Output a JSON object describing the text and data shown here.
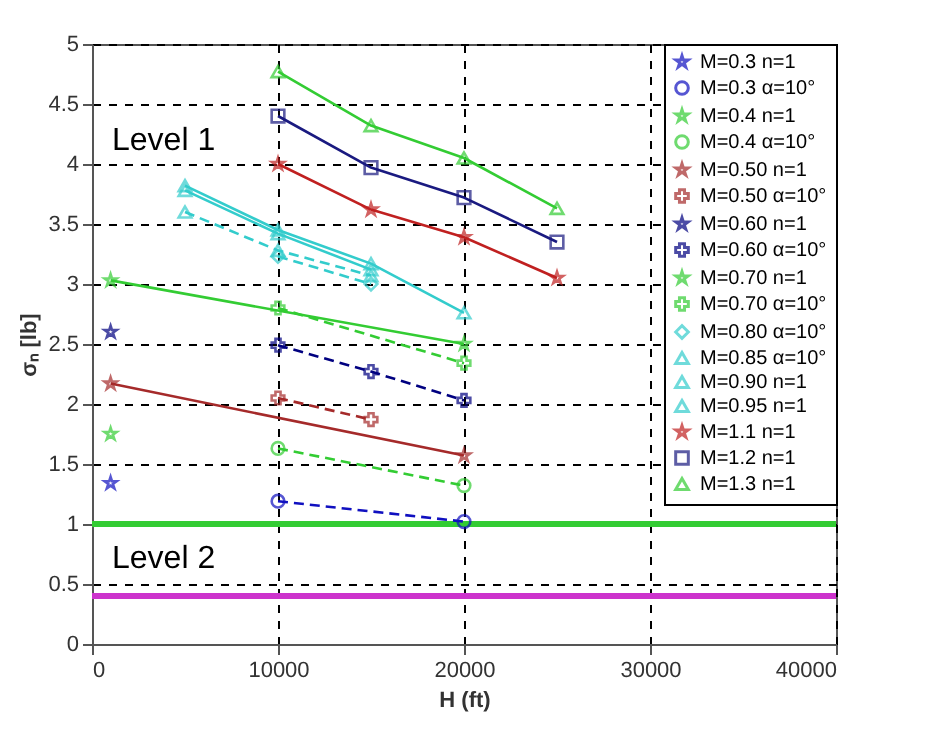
{
  "chart_data": {
    "type": "line",
    "xlabel": "H (ft)",
    "ylabel": "σₙ [lb]",
    "xlim": [
      0,
      40000
    ],
    "xticks": [
      0,
      10000,
      20000,
      30000,
      40000
    ],
    "ylim": [
      0,
      5
    ],
    "yticks": [
      0,
      0.5,
      1,
      1.5,
      2,
      2.5,
      3,
      3.5,
      4,
      4.5,
      5
    ],
    "grid": true,
    "legend": "top right",
    "series": [
      {
        "name": "M=0.3 n=1",
        "type": "scatter",
        "marker": "star",
        "color": "#1010c0",
        "x": [
          1000
        ],
        "values": [
          1.34
        ]
      },
      {
        "name": "M=0.3 α=10°",
        "marker": "circle",
        "line_style": "dashed",
        "color": "#1010c0",
        "x": [
          10000,
          20000
        ],
        "values": [
          1.19,
          1.02
        ]
      },
      {
        "name": "M=0.4 n=1",
        "type": "scatter",
        "marker": "star",
        "color": "#33cc33",
        "x": [
          1000
        ],
        "values": [
          1.75
        ]
      },
      {
        "name": "M=0.4 α=10°",
        "marker": "circle",
        "line_style": "dashed",
        "color": "#33cc33",
        "x": [
          10000,
          20000
        ],
        "values": [
          1.63,
          1.32
        ]
      },
      {
        "name": "M=0.50 n=1",
        "marker": "star",
        "line_style": "solid",
        "color": "#a52a2a",
        "x": [
          1000,
          20000
        ],
        "values": [
          2.17,
          1.57
        ]
      },
      {
        "name": "M=0.50 α=10°",
        "marker": "cross",
        "line_style": "dashed",
        "color": "#a52a2a",
        "x": [
          10000,
          15000
        ],
        "values": [
          2.05,
          1.87
        ]
      },
      {
        "name": "M=0.60 n=1",
        "type": "scatter",
        "marker": "star",
        "color": "#000080",
        "x": [
          1000
        ],
        "values": [
          2.6
        ]
      },
      {
        "name": "M=0.60 α=10°",
        "marker": "cross",
        "line_style": "dashed",
        "color": "#000080",
        "x": [
          10000,
          15000,
          20000
        ],
        "values": [
          2.49,
          2.27,
          2.03
        ]
      },
      {
        "name": "M=0.70 n=1",
        "marker": "star",
        "line_style": "solid",
        "color": "#33cc33",
        "x": [
          1000,
          20000
        ],
        "values": [
          3.03,
          2.5
        ]
      },
      {
        "name": "M=0.70 α=10°",
        "marker": "cross",
        "line_style": "dashed",
        "color": "#33cc33",
        "x": [
          10000,
          20000
        ],
        "values": [
          2.8,
          2.34
        ]
      },
      {
        "name": "M=0.80 α=10°",
        "marker": "diamond",
        "line_style": "dashed",
        "color": "#33cccc",
        "x": [
          10000,
          15000
        ],
        "values": [
          3.23,
          3.0
        ]
      },
      {
        "name": "M=0.85 α=10°",
        "marker": "triangle",
        "line_style": "dashed",
        "color": "#33cccc",
        "x": [
          5000,
          10000,
          15000
        ],
        "values": [
          3.6,
          3.28,
          3.07
        ]
      },
      {
        "name": "M=0.90 n=1",
        "marker": "triangle",
        "line_style": "solid",
        "color": "#33cccc",
        "x": [
          5000,
          10000,
          15000,
          20000
        ],
        "values": [
          3.82,
          3.45,
          3.17,
          2.76
        ]
      },
      {
        "name": "M=0.95 n=1",
        "marker": "triangle",
        "line_style": "solid",
        "color": "#33cccc",
        "x": [
          5000,
          10000,
          15000
        ],
        "values": [
          3.78,
          3.42,
          3.12
        ]
      },
      {
        "name": "M=1.1 n=1",
        "marker": "star",
        "line_style": "solid",
        "color": "#c02020",
        "x": [
          10000,
          15000,
          20000,
          25000
        ],
        "values": [
          4.0,
          3.62,
          3.39,
          3.05
        ]
      },
      {
        "name": "M=1.2 n=1",
        "marker": "square",
        "line_style": "solid",
        "color": "#1a1a80",
        "x": [
          10000,
          15000,
          20000,
          25000
        ],
        "values": [
          4.4,
          3.97,
          3.72,
          3.35
        ]
      },
      {
        "name": "M=1.3 n=1",
        "marker": "triangle",
        "line_style": "solid",
        "color": "#33cc33",
        "x": [
          10000,
          15000,
          20000,
          25000
        ],
        "values": [
          4.77,
          4.32,
          4.05,
          3.63
        ]
      }
    ],
    "ref_lines": [
      {
        "axis": "y",
        "value": 1,
        "color": "#33cc33"
      },
      {
        "axis": "y",
        "value": 0.4,
        "color": "#cc33cc"
      }
    ],
    "annotations": [
      "Level 1",
      "Level 2"
    ]
  }
}
